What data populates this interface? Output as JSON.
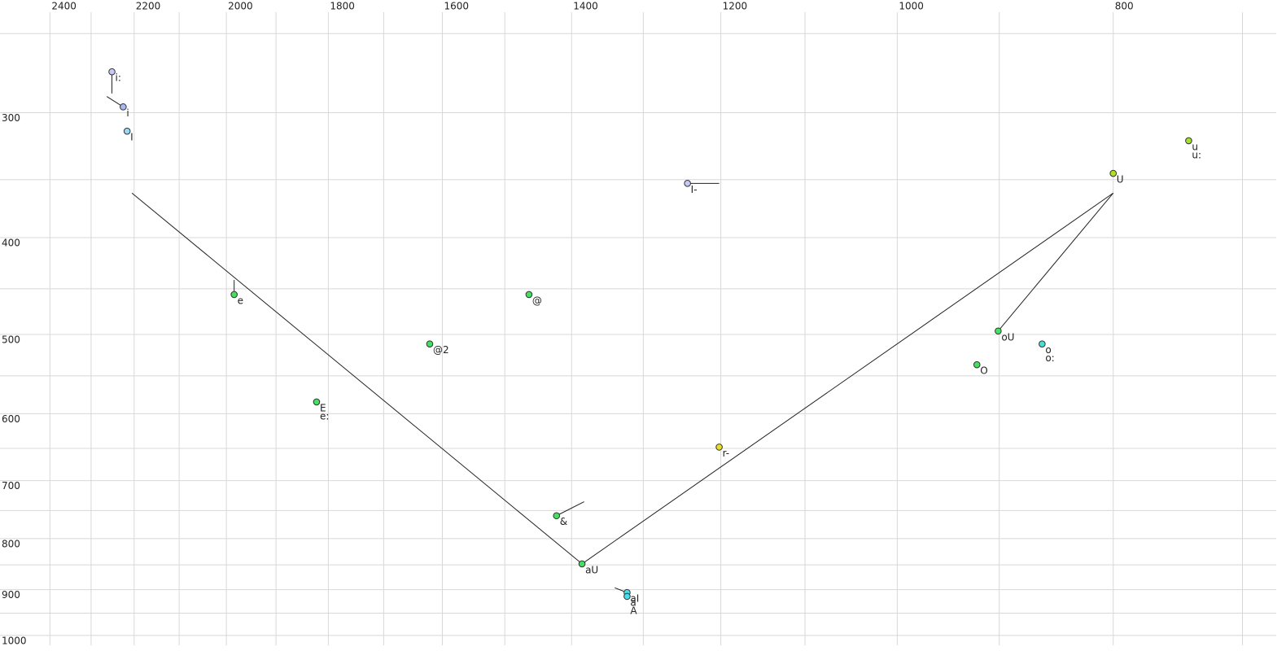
{
  "chart_data": {
    "type": "scatter",
    "xscale": "log",
    "yscale": "log",
    "xlim": [
      2527,
      676
    ],
    "ylim": [
      238,
      1023
    ],
    "xticks": [
      2400,
      2200,
      2000,
      1800,
      1600,
      1400,
      1200,
      1000,
      800
    ],
    "xminor": [
      2300,
      2100,
      1900,
      1700,
      1500,
      1300,
      1100,
      900,
      700
    ],
    "yticks": [
      300,
      400,
      500,
      600,
      700,
      800,
      900,
      1000
    ],
    "yminor": [
      250,
      350,
      450,
      550,
      650,
      750,
      850,
      950
    ],
    "grid": true,
    "points": [
      {
        "label": "i:",
        "x": 2251,
        "y": 273,
        "color": "#c8c8f8"
      },
      {
        "label": "i",
        "x": 2225,
        "y": 296,
        "color": "#a8b8f0"
      },
      {
        "label": "I",
        "x": 2216,
        "y": 313,
        "color": "#98d8f8"
      },
      {
        "label": "e",
        "x": 1984,
        "y": 456,
        "color": "#44e060"
      },
      {
        "label": "E",
        "x": 1822,
        "y": 584,
        "color": "#44e060"
      },
      {
        "label": "e:",
        "x": 1822,
        "y": 584,
        "color": "#44e060"
      },
      {
        "label": "@",
        "x": 1463,
        "y": 456,
        "color": "#44e060"
      },
      {
        "label": "@2",
        "x": 1621,
        "y": 511,
        "color": "#44e060"
      },
      {
        "label": "I-",
        "x": 1242,
        "y": 353,
        "color": "#c8c8f8"
      },
      {
        "label": "r-",
        "x": 1202,
        "y": 648,
        "color": "#e8e020"
      },
      {
        "label": "&",
        "x": 1422,
        "y": 759,
        "color": "#44e060"
      },
      {
        "label": "aU",
        "x": 1385,
        "y": 848,
        "color": "#44e060"
      },
      {
        "label": "aI",
        "x": 1322,
        "y": 906,
        "color": "#48e0e8"
      },
      {
        "label": "a",
        "x": 1322,
        "y": 914,
        "color": "#48e0e8"
      },
      {
        "label": "A",
        "x": 1322,
        "y": 914,
        "color": "#48e0e8"
      },
      {
        "label": "oU",
        "x": 901,
        "y": 496,
        "color": "#44e060"
      },
      {
        "label": "O",
        "x": 921,
        "y": 536,
        "color": "#44e060"
      },
      {
        "label": "o",
        "x": 861,
        "y": 511,
        "color": "#48e0d0"
      },
      {
        "label": "o:",
        "x": 861,
        "y": 511,
        "color": "#48e0d0"
      },
      {
        "label": "U",
        "x": 800,
        "y": 345,
        "color": "#b0e020"
      },
      {
        "label": "u",
        "x": 740,
        "y": 320,
        "color": "#a8e030"
      },
      {
        "label": "u:",
        "x": 740,
        "y": 320,
        "color": "#a8e030"
      }
    ],
    "segments": [
      {
        "x": [
          2251,
          2251
        ],
        "y": [
          273,
          287
        ]
      },
      {
        "x": [
          2263,
          2225
        ],
        "y": [
          289,
          296
        ]
      },
      {
        "x": [
          1984,
          1984
        ],
        "y": [
          441,
          456
        ]
      },
      {
        "x": [
          1242,
          1202
        ],
        "y": [
          353,
          353
        ]
      },
      {
        "x": [
          1422,
          1382
        ],
        "y": [
          759,
          735
        ]
      },
      {
        "x": [
          1339,
          1322
        ],
        "y": [
          896,
          906
        ]
      },
      {
        "x": [
          2205,
          1385
        ],
        "y": [
          361,
          848
        ]
      },
      {
        "x": [
          1385,
          800
        ],
        "y": [
          848,
          361
        ]
      },
      {
        "x": [
          800,
          901
        ],
        "y": [
          361,
          496
        ]
      }
    ]
  }
}
